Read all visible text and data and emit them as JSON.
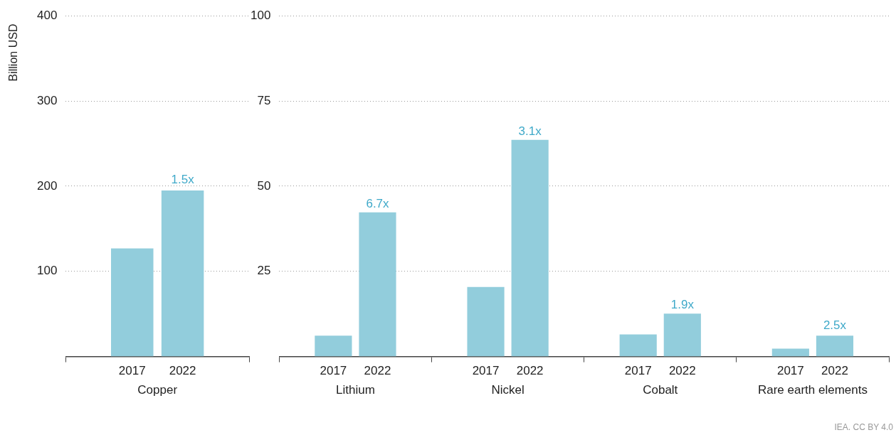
{
  "chart_data": [
    {
      "type": "bar",
      "ylabel": "Billion USD",
      "categories": [
        "Copper"
      ],
      "series": [
        {
          "name": "2017",
          "color": "#92cddc",
          "values": [
            127
          ]
        },
        {
          "name": "2022",
          "color": "#92cddc",
          "values": [
            195
          ]
        }
      ],
      "ylim": [
        0,
        400
      ],
      "yticks": [
        100,
        200,
        300,
        400
      ],
      "grid": "y",
      "legend": false,
      "annotations": [
        "1.5x"
      ]
    },
    {
      "type": "bar",
      "categories": [
        "Lithium",
        "Nickel",
        "Cobalt",
        "Rare earth elements"
      ],
      "series": [
        {
          "name": "2017",
          "color": "#92cddc",
          "values": [
            6.1,
            20.4,
            6.5,
            2.3
          ]
        },
        {
          "name": "2022",
          "color": "#92cddc",
          "values": [
            42.3,
            63.6,
            12.6,
            6.1
          ]
        }
      ],
      "ylim": [
        0,
        100
      ],
      "yticks": [
        25,
        50,
        75,
        100
      ],
      "grid": "y",
      "legend": false,
      "annotations": [
        {
          "text": "6.7x",
          "x": "Lithium",
          "y": 42.3
        },
        {
          "text": "3.1x",
          "x": "Nickel",
          "y": 63.6
        },
        {
          "text": "1.9x",
          "x": "Cobalt",
          "y": 12.6
        },
        "2.5x",
        "IEA. CC BY 4.0"
      ]
    }
  ]
}
